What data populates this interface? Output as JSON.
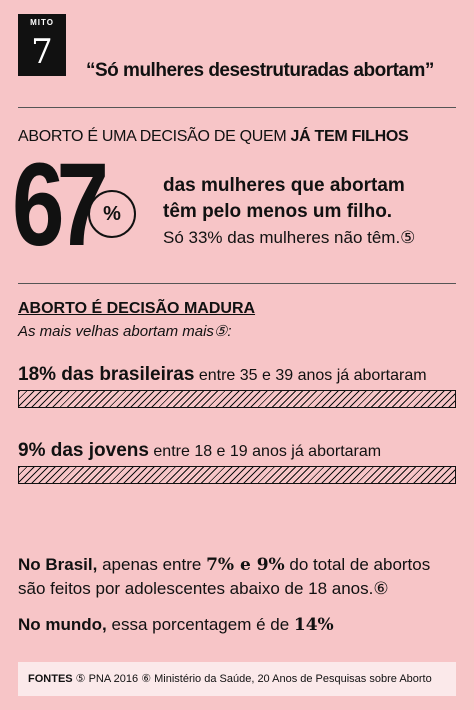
{
  "badge": {
    "label": "MITO",
    "number": "7"
  },
  "quote": "“Só mulheres desestruturadas abortam”",
  "section1": {
    "heading": "ABORTO É UMA DECISÃO DE QUEM ",
    "heading_bold": "JÁ TEM FILHOS",
    "big_number": "67",
    "unit": "%",
    "line1": "das mulheres que abortam",
    "line2": "têm pelo menos um filho.",
    "line3": "Só 33% das mulheres não têm.⑤"
  },
  "section2": {
    "heading": "ABORTO É DECISÃO MADURA",
    "subheading": "As mais velhas abortam mais⑤:",
    "bars": [
      {
        "lead": "18% das brasileiras",
        "rest": " entre 35 e 39 anos já abortaram",
        "value": 18
      },
      {
        "lead": "9% das jovens",
        "rest": " entre 18 e 19 anos já abortaram",
        "value": 9
      }
    ]
  },
  "section3": {
    "p1": [
      "No Brasil,",
      " apenas entre ",
      "7% e 9%",
      " do total de abortos"
    ],
    "p1b": "são feitos por adolescentes abaixo de 18 anos.⑥",
    "p2": [
      "No mundo,",
      " essa porcentagem é de ",
      "14%"
    ]
  },
  "footer": {
    "label": "FONTES",
    "text": " ⑤ PNA 2016 ⑥ Ministério da Saúde, 20 Anos de Pesquisas sobre Aborto"
  }
}
